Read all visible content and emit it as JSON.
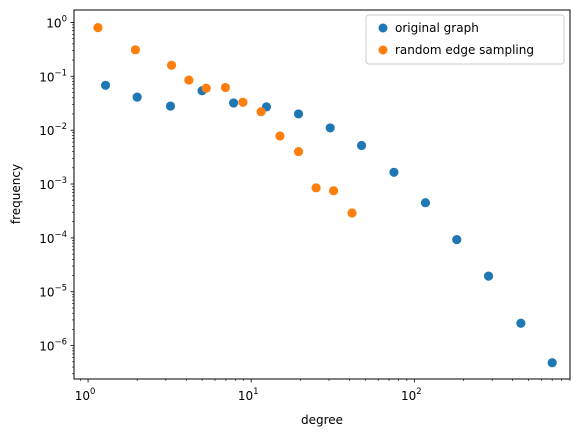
{
  "chart_data": {
    "type": "scatter",
    "xlabel": "degree",
    "ylabel": "frequency",
    "x_scale": "log",
    "y_scale": "log",
    "xlim": [
      0.82,
      900
    ],
    "ylim": [
      2.4e-07,
      1.7
    ],
    "x_ticks": [
      {
        "value": 1,
        "base": "10",
        "exp": "0"
      },
      {
        "value": 10,
        "base": "10",
        "exp": "1"
      },
      {
        "value": 100,
        "base": "10",
        "exp": "2"
      }
    ],
    "y_ticks": [
      {
        "value": 1e-06,
        "base": "10",
        "exp": "−6"
      },
      {
        "value": 1e-05,
        "base": "10",
        "exp": "−5"
      },
      {
        "value": 0.0001,
        "base": "10",
        "exp": "−4"
      },
      {
        "value": 0.001,
        "base": "10",
        "exp": "−3"
      },
      {
        "value": 0.01,
        "base": "10",
        "exp": "−2"
      },
      {
        "value": 0.1,
        "base": "10",
        "exp": "−1"
      },
      {
        "value": 1,
        "base": "10",
        "exp": "0"
      }
    ],
    "grid": false,
    "legend_position": "top-right",
    "series": [
      {
        "name": "original graph",
        "color": "#1f77b4",
        "points": [
          [
            1.28,
            0.068
          ],
          [
            2.0,
            0.041
          ],
          [
            3.2,
            0.028
          ],
          [
            5.0,
            0.054
          ],
          [
            7.8,
            0.032
          ],
          [
            12.4,
            0.027
          ],
          [
            19.5,
            0.02
          ],
          [
            30.5,
            0.011
          ],
          [
            47.5,
            0.0052
          ],
          [
            75.0,
            0.00165
          ],
          [
            117.0,
            0.00045
          ],
          [
            182.0,
            9.3e-05
          ],
          [
            285.0,
            1.95e-05
          ],
          [
            450.0,
            2.6e-06
          ],
          [
            700.0,
            4.8e-07
          ]
        ]
      },
      {
        "name": "random edge sampling",
        "color": "#ff7f0e",
        "points": [
          [
            1.15,
            0.8
          ],
          [
            1.95,
            0.31
          ],
          [
            3.25,
            0.16
          ],
          [
            4.15,
            0.085
          ],
          [
            5.3,
            0.06
          ],
          [
            6.95,
            0.062
          ],
          [
            8.9,
            0.033
          ],
          [
            11.5,
            0.022
          ],
          [
            15.0,
            0.0078
          ],
          [
            19.5,
            0.004
          ],
          [
            25.0,
            0.00085
          ],
          [
            32.0,
            0.00075
          ],
          [
            41.5,
            0.00029
          ]
        ]
      }
    ]
  }
}
